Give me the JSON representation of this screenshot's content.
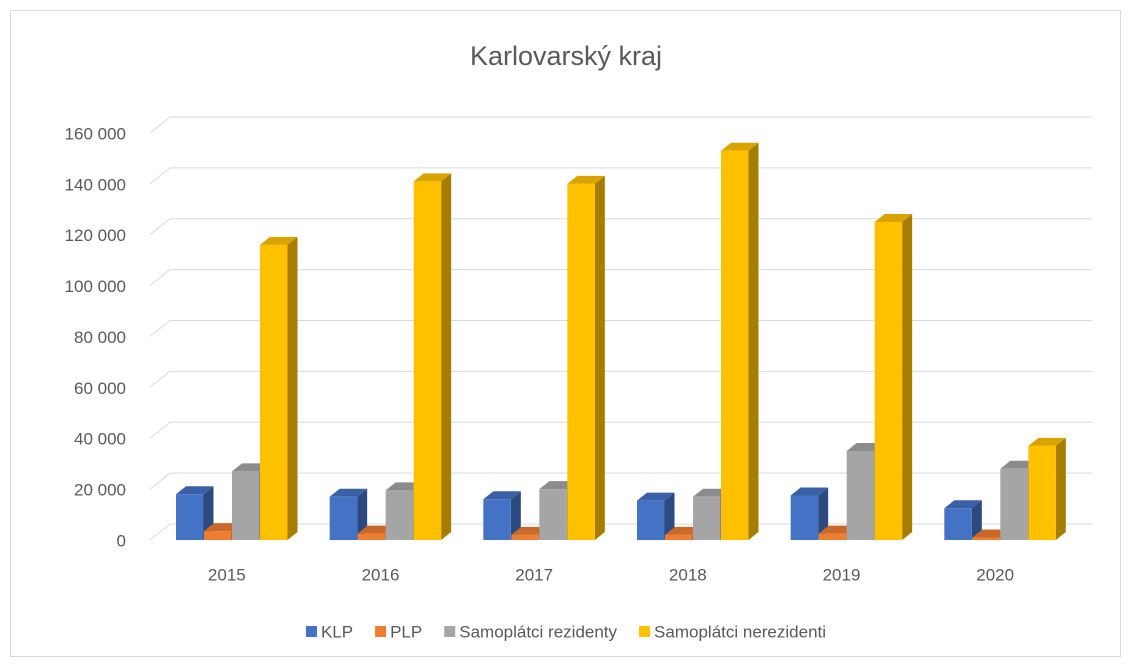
{
  "chart_data": {
    "type": "bar3d",
    "title": "Karlovarský kraj",
    "categories": [
      "2015",
      "2016",
      "2017",
      "2018",
      "2019",
      "2020"
    ],
    "series": [
      {
        "name": "KLP",
        "color": "#4472c4",
        "values": [
          18000,
          17000,
          16000,
          15500,
          17500,
          12500
        ]
      },
      {
        "name": "PLP",
        "color": "#ed7d31",
        "values": [
          3500,
          2500,
          2000,
          2000,
          2500,
          1000
        ]
      },
      {
        "name": "Samoplátci rezidenty",
        "color": "#a5a5a5",
        "values": [
          27000,
          19500,
          20000,
          17000,
          35000,
          28000
        ]
      },
      {
        "name": "Samoplátci nerezidenti",
        "color": "#ffc000",
        "values": [
          116000,
          141000,
          140000,
          153000,
          125000,
          37000
        ]
      }
    ],
    "ylim": [
      0,
      160000
    ],
    "yticks": [
      0,
      {
        "value": 20000,
        "label": "20 000"
      },
      {
        "value": 40000,
        "label": "40 000"
      },
      {
        "value": 60000,
        "label": "60 000"
      },
      {
        "value": 80000,
        "label": "80 000"
      },
      {
        "value": 100000,
        "label": "100 000"
      },
      {
        "value": 120000,
        "label": "120 000"
      },
      {
        "value": 140000,
        "label": "140 000"
      },
      {
        "value": 160000,
        "label": "160 000"
      }
    ],
    "grid": true,
    "legend": "bottom"
  }
}
